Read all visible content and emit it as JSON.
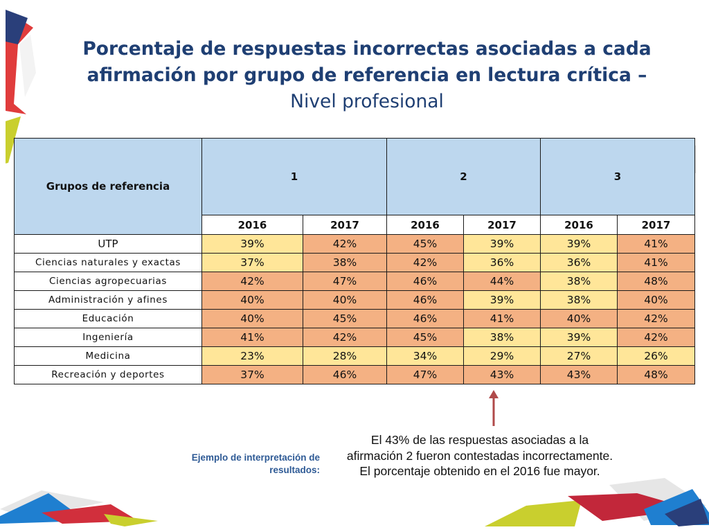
{
  "title": {
    "bold": "Porcentaje de respuestas incorrectas asociadas a cada afirmación por grupo de referencia en lectura crítica –",
    "normal": "Nivel profesional"
  },
  "table": {
    "header_group": "Grupos de referencia",
    "affirmations": [
      "1",
      "2",
      "3"
    ],
    "years": [
      "2016",
      "2017",
      "2016",
      "2017",
      "2016",
      "2017"
    ],
    "rows": [
      {
        "group": "UTP",
        "values": [
          "39%",
          "42%",
          "45%",
          "39%",
          "39%",
          "41%"
        ]
      },
      {
        "group": "Ciencias naturales y exactas",
        "values": [
          "37%",
          "38%",
          "42%",
          "36%",
          "36%",
          "41%"
        ]
      },
      {
        "group": "Ciencias agropecuarias",
        "values": [
          "42%",
          "47%",
          "46%",
          "44%",
          "38%",
          "48%"
        ]
      },
      {
        "group": "Administración y afines",
        "values": [
          "40%",
          "40%",
          "46%",
          "39%",
          "38%",
          "40%"
        ]
      },
      {
        "group": "Educación",
        "values": [
          "40%",
          "45%",
          "46%",
          "41%",
          "40%",
          "42%"
        ]
      },
      {
        "group": "Ingeniería",
        "values": [
          "41%",
          "42%",
          "45%",
          "38%",
          "39%",
          "42%"
        ]
      },
      {
        "group": "Medicina",
        "values": [
          "23%",
          "28%",
          "34%",
          "29%",
          "27%",
          "26%"
        ]
      },
      {
        "group": "Recreación y deportes",
        "values": [
          "37%",
          "46%",
          "47%",
          "43%",
          "43%",
          "48%"
        ]
      }
    ]
  },
  "example_label": "Ejemplo de interpretación de resultados:",
  "note": "El 43% de las respuestas asociadas a la afirmación 2 fueron contestadas incorrectamente. El porcentaje obtenido en el 2016 fue mayor.",
  "colors": {
    "header_fill": "#bdd7ee",
    "higher_value_fill": "#f4b183",
    "lower_value_fill": "#ffe699",
    "title": "#1f3f73",
    "arrow": "#b04a4a"
  }
}
